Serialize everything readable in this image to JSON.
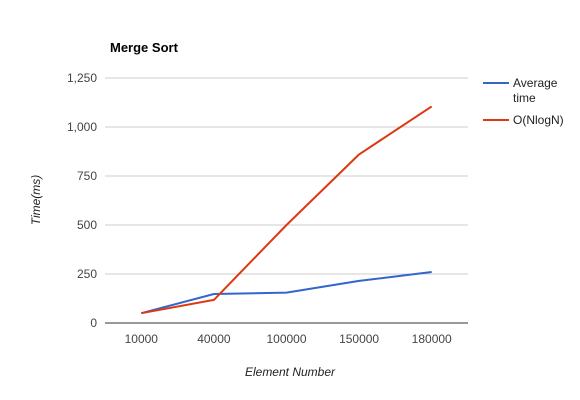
{
  "chart_data": {
    "type": "line",
    "title": "Merge Sort",
    "xlabel": "Element Number",
    "ylabel": "Time(ms)",
    "categories": [
      "10000",
      "40000",
      "100000",
      "150000",
      "180000"
    ],
    "ylim": [
      0,
      1250
    ],
    "yticks": [
      0,
      250,
      500,
      750,
      1000,
      1250
    ],
    "ytick_labels": [
      "0",
      "250",
      "500",
      "750",
      "1,000",
      "1,250"
    ],
    "grid": true,
    "legend_position": "right",
    "series": [
      {
        "name": "Average time",
        "legend_lines": [
          "Average",
          "time"
        ],
        "color": "#3366cc",
        "values": [
          50,
          148,
          155,
          215,
          260
        ]
      },
      {
        "name": "O(NlogN)",
        "legend_lines": [
          "O(NlogN)"
        ],
        "color": "#dc3912",
        "values": [
          50,
          118,
          500,
          860,
          1105
        ]
      }
    ]
  }
}
